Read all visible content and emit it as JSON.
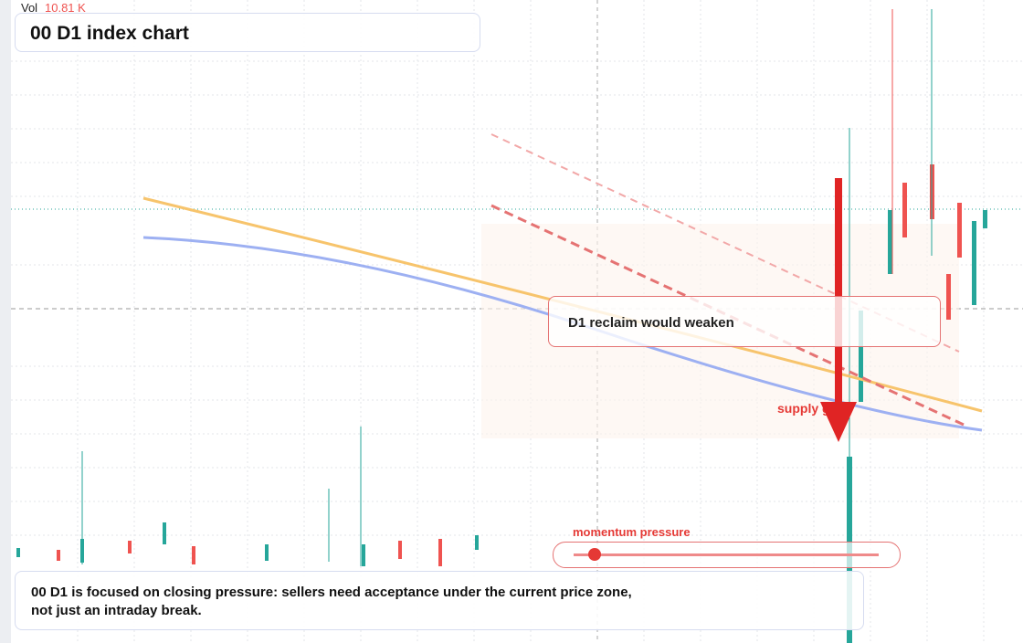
{
  "header": {
    "vol_label": "Vol",
    "vol_value": "10.81 K",
    "title": "00 D1 index chart"
  },
  "annotations": {
    "callout": "D1 reclaim would weaken",
    "supply": "supply g",
    "momentum": "momentum pressure"
  },
  "note": {
    "lines": [
      "00 D1 is focused on closing pressure: sellers need acceptance under the current price zone,",
      "not just an intraday break."
    ]
  }
}
